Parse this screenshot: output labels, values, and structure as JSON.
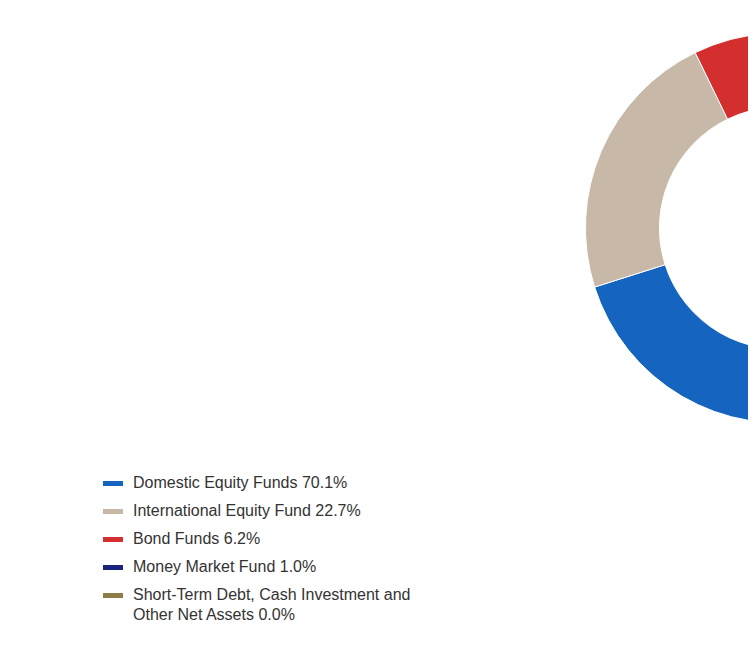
{
  "chart_data": {
    "type": "pie",
    "categories": [
      "Domestic Equity Funds 70.1%",
      "International Equity Fund 22.7%",
      "Bond Funds 6.2%",
      "Money Market Fund 1.0%",
      "Short-Term Debt, Cash Investment and\nOther Net Assets 0.0%"
    ],
    "values": [
      70.1,
      22.7,
      6.2,
      1.0,
      0.0
    ],
    "colors": [
      "#1565C0",
      "#C8B8A8",
      "#D32F2F",
      "#1A237E",
      "#8B7D45"
    ],
    "legend": "bottom"
  }
}
